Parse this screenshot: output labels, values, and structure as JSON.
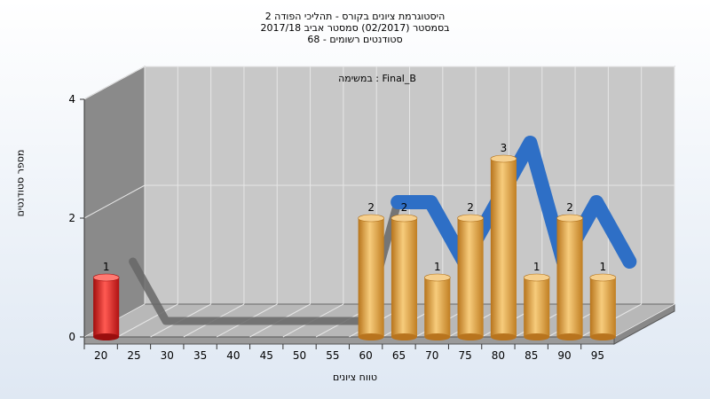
{
  "title_lines": [
    "היסטוגרמת ציונים בקורס - תהליכי הפודה 2",
    "בסמסטר  (02/2017)  סמסטר אביב 2017/18",
    "סטודנטים רשומים - 68"
  ],
  "assignment_label": "במשימה : Final_B",
  "colors": {
    "highlight": "#e0201c",
    "bar": "#e8a030",
    "ribbon": "#2e6fc6",
    "shadow_line": "#666666",
    "wall": "#8a8a8a",
    "back": "#c8c8c8"
  },
  "chart_data": {
    "type": "bar",
    "title": "היסטוגרמת ציונים בקורס - תהליכי הפודה 2",
    "xlabel": "טווח ציונים",
    "ylabel": "מספר סטודנטים",
    "ylim": [
      0,
      4
    ],
    "yticks": [
      "0",
      "2",
      "4"
    ],
    "categories": [
      "20",
      "25",
      "30",
      "35",
      "40",
      "45",
      "50",
      "55",
      "60",
      "65",
      "70",
      "75",
      "80",
      "85",
      "90",
      "95"
    ],
    "values": [
      1,
      0,
      0,
      0,
      0,
      0,
      0,
      0,
      2,
      2,
      1,
      2,
      3,
      1,
      2,
      1
    ],
    "data_labels": [
      "1",
      "",
      "",
      "",
      "",
      "",
      "",
      "",
      "2",
      "2",
      "1",
      "2",
      "3",
      "1",
      "2",
      "1"
    ],
    "highlight_category": "20",
    "grid": true
  }
}
